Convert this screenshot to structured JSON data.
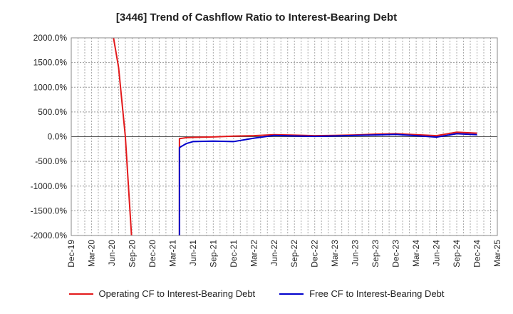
{
  "chart_data": {
    "type": "line",
    "title": "[3446]  Trend of Cashflow Ratio to Interest-Bearing Debt",
    "xlabel": "",
    "ylabel": "",
    "ylim": [
      -2000,
      2000
    ],
    "y_ticks": [
      2000,
      1500,
      1000,
      500,
      0,
      -500,
      -1000,
      -1500,
      -2000
    ],
    "y_tick_labels": [
      "2000.0%",
      "1500.0%",
      "1000.0%",
      "500.0%",
      "0.0%",
      "-500.0%",
      "-1000.0%",
      "-1500.0%",
      "-2000.0%"
    ],
    "x_tick_labels": [
      "Dec-19",
      "Mar-20",
      "Jun-20",
      "Sep-20",
      "Dec-20",
      "Mar-21",
      "Jun-21",
      "Sep-21",
      "Dec-21",
      "Mar-22",
      "Jun-22",
      "Sep-22",
      "Dec-22",
      "Mar-23",
      "Jun-23",
      "Sep-23",
      "Dec-23",
      "Mar-24",
      "Jun-24",
      "Sep-24",
      "Dec-24",
      "Mar-25"
    ],
    "grid": true,
    "legend_position": "bottom",
    "series": [
      {
        "name": "Operating CF to Interest-Bearing Debt",
        "color": "#e31a1c",
        "points": [
          [
            "2020-06",
            2200
          ],
          [
            "2020-07",
            1400
          ],
          [
            "2020-08",
            0
          ],
          [
            "2020-09",
            -2200
          ],
          [
            "2021-03",
            null
          ],
          [
            "2021-04",
            -2200
          ],
          [
            "2021-04",
            -40
          ],
          [
            "2021-05",
            -20
          ],
          [
            "2021-06",
            -15
          ],
          [
            "2021-09",
            -5
          ],
          [
            "2021-12",
            10
          ],
          [
            "2022-03",
            20
          ],
          [
            "2022-06",
            40
          ],
          [
            "2022-09",
            30
          ],
          [
            "2022-12",
            20
          ],
          [
            "2023-03",
            25
          ],
          [
            "2023-06",
            35
          ],
          [
            "2023-09",
            50
          ],
          [
            "2023-12",
            60
          ],
          [
            "2024-03",
            40
          ],
          [
            "2024-06",
            20
          ],
          [
            "2024-09",
            90
          ],
          [
            "2024-12",
            70
          ]
        ]
      },
      {
        "name": "Free CF to Interest-Bearing Debt",
        "color": "#0000cc",
        "points": [
          [
            "2021-03",
            -2200
          ],
          [
            "2021-04",
            -2200
          ],
          [
            "2021-04",
            -220
          ],
          [
            "2021-05",
            -140
          ],
          [
            "2021-06",
            -100
          ],
          [
            "2021-09",
            -90
          ],
          [
            "2021-12",
            -100
          ],
          [
            "2022-03",
            -30
          ],
          [
            "2022-06",
            25
          ],
          [
            "2022-09",
            15
          ],
          [
            "2022-12",
            5
          ],
          [
            "2023-03",
            15
          ],
          [
            "2023-06",
            25
          ],
          [
            "2023-09",
            35
          ],
          [
            "2023-12",
            45
          ],
          [
            "2024-03",
            20
          ],
          [
            "2024-06",
            -10
          ],
          [
            "2024-09",
            60
          ],
          [
            "2024-12",
            40
          ]
        ]
      }
    ]
  }
}
